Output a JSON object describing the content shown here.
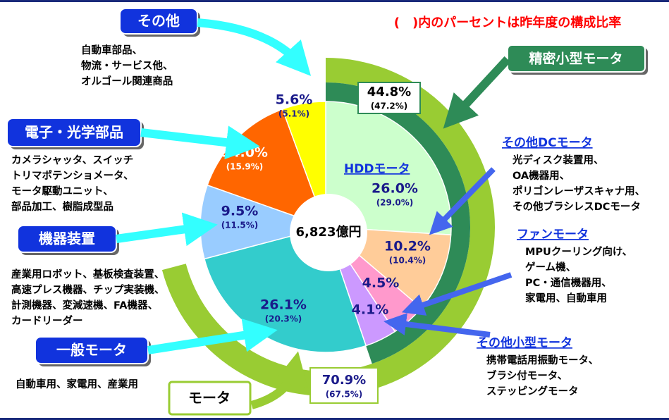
{
  "chart_data": {
    "type": "pie",
    "note": "(　)内のパーセントは昨年度の構成比率",
    "center_label": "6,823億円",
    "categories": [
      "HDDモータ",
      "その他DCモータ",
      "ファンモータ",
      "その他小型モータ",
      "一般モータ",
      "機器装置",
      "電子・光学部品",
      "その他"
    ],
    "values": [
      26.0,
      10.2,
      4.5,
      4.1,
      26.1,
      9.5,
      14.0,
      5.6
    ],
    "value_labels": [
      "26.0%",
      "10.2%",
      "4.5%",
      "4.1%",
      "26.1%",
      "9.5%",
      "14.0%",
      "5.6%"
    ],
    "previous_labels": [
      "(29.0%)",
      "(10.4%)",
      null,
      null,
      "(20.3%)",
      "(11.5%)",
      "(15.9%)",
      "(5.1%)"
    ],
    "colors": [
      "#ccffcc",
      "#ffcc99",
      "#ff99cc",
      "#cc99ff",
      "#33cccc",
      "#99ccff",
      "#ff6600",
      "#ffff00"
    ],
    "descriptions": [
      null,
      [
        "光ディスク装置用、",
        "OA機器用、",
        "ポリゴンレーザスキャナ用、",
        "その他ブラシレスDCモータ"
      ],
      [
        "MPUクーリング向け、",
        "ゲーム機、",
        "PC・通信機器用、",
        "家電用、自動車用"
      ],
      [
        "携帯電話用振動モータ、",
        "ブラシ付モータ、",
        "ステッピングモータ"
      ],
      [
        "自動車用、家電用、産業用"
      ],
      [
        "産業用ロボット、基板検査装置、",
        "高速プレス機器、チップ実装機、",
        "計測機器、変減速機、FA機器、",
        "カードリーダー"
      ],
      [
        "カメラシャッタ、スイッチ",
        "トリマポテンショメータ、",
        "モータ駆動ユニット、",
        "部品加工、樹脂成型品"
      ],
      [
        "自動車部品、",
        "物流・サービス他、",
        "オルゴール関連商品"
      ]
    ],
    "rings": [
      {
        "name": "精密小型モータ",
        "value": 44.8,
        "value_label": "44.8%",
        "previous_label": "(47.2%)",
        "color": "#2e8b57"
      },
      {
        "name": "モータ",
        "value": 70.9,
        "value_label": "70.9%",
        "previous_label": "(67.5%)",
        "color": "#99cc33"
      }
    ]
  }
}
